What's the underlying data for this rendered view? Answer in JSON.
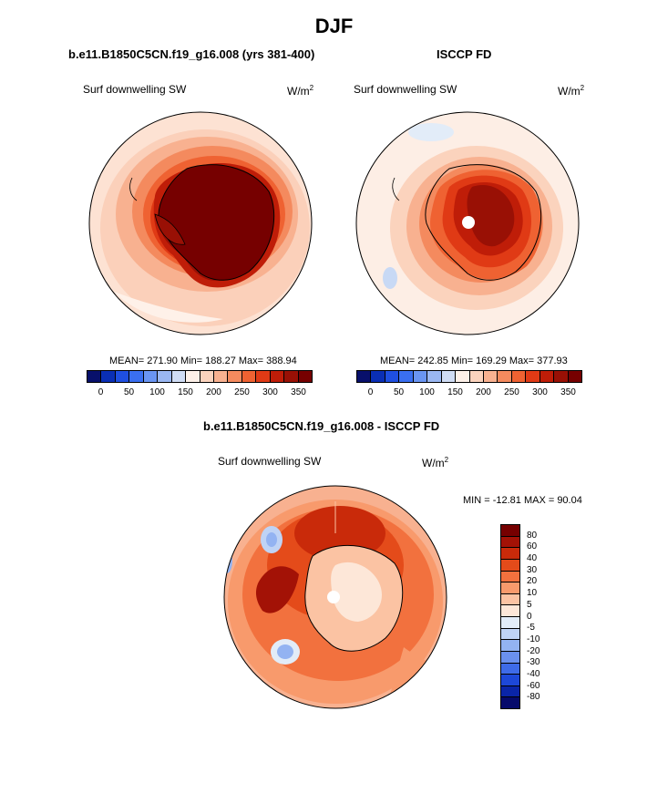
{
  "title": "DJF",
  "panels": {
    "left": {
      "title": "b.e11.B1850C5CN.f19_g16.008 (yrs 381-400)",
      "var_label": "Surf downwelling SW",
      "units_base": "W/m",
      "units_exp": "2",
      "stats": "MEAN= 271.90  Min= 188.27  Max= 388.94"
    },
    "right": {
      "title": "ISCCP FD",
      "var_label": "Surf downwelling SW",
      "units_base": "W/m",
      "units_exp": "2",
      "stats": "MEAN= 242.85  Min= 169.29  Max= 377.93"
    },
    "diff": {
      "title": "b.e11.B1850C5CN.f19_g16.008 - ISCCP FD",
      "var_label": "Surf downwelling SW",
      "units_base": "W/m",
      "units_exp": "2",
      "stats": "MIN = -12.81 MAX =  90.04"
    }
  },
  "colorbar_main": {
    "colors": [
      "#08106b",
      "#0a2fb5",
      "#1f4fe0",
      "#3a6ff0",
      "#6a95f2",
      "#9ab7f2",
      "#cfdcf4",
      "#fdf0e8",
      "#fbd3bd",
      "#f8b190",
      "#f48a5e",
      "#ef6232",
      "#e03a15",
      "#bf1d08",
      "#991005",
      "#760000"
    ],
    "ticks": [
      "0",
      "50",
      "100",
      "150",
      "200",
      "250",
      "300",
      "350"
    ]
  },
  "colorbar_diff": {
    "colors": [
      "#760000",
      "#a31206",
      "#c92a0a",
      "#e44b1a",
      "#f2713e",
      "#f89a6c",
      "#fbc3a3",
      "#fde7d8",
      "#e2ecf8",
      "#bfd3f5",
      "#93b3f2",
      "#6a90ee",
      "#3e6be8",
      "#1d48d8",
      "#0a25a8",
      "#060a6b"
    ],
    "ticks": [
      "80",
      "60",
      "40",
      "30",
      "20",
      "10",
      "5",
      "0",
      "-5",
      "-10",
      "-20",
      "-30",
      "-40",
      "-60",
      "-80"
    ]
  }
}
